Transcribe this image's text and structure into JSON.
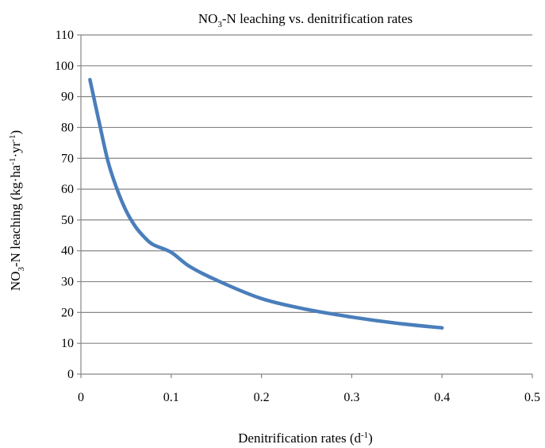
{
  "chart_data": {
    "type": "line",
    "title": {
      "pre": "NO",
      "sub": "3",
      "post": "-N leaching vs. denitrification rates"
    },
    "xlabel": {
      "pre": "Denitrification rates (d",
      "sup": "-1",
      "post": ")"
    },
    "ylabel": {
      "pre": "NO",
      "sub": "3",
      "mid": "-N leaching (kg·ha",
      "sup1": "-1",
      "mid2": "·yr",
      "sup2": "-1",
      "post": ")"
    },
    "xlim": [
      0,
      0.5
    ],
    "ylim": [
      0,
      110
    ],
    "xticks": [
      "0",
      "0.1",
      "0.2",
      "0.3",
      "0.4",
      "0.5"
    ],
    "yticks": [
      "0",
      "10",
      "20",
      "30",
      "40",
      "50",
      "60",
      "70",
      "80",
      "90",
      "100",
      "110"
    ],
    "grid": "horizontal",
    "series": [
      {
        "color": "#4a7ebb",
        "x": [
          0.01,
          0.02,
          0.03,
          0.04,
          0.05,
          0.06,
          0.07,
          0.08,
          0.1,
          0.12,
          0.15,
          0.2,
          0.25,
          0.3,
          0.35,
          0.4
        ],
        "y": [
          95.5,
          82,
          69,
          60,
          53,
          48,
          44.5,
          42,
          39.5,
          35,
          30.5,
          24.5,
          21,
          18.5,
          16.5,
          15
        ]
      }
    ]
  }
}
